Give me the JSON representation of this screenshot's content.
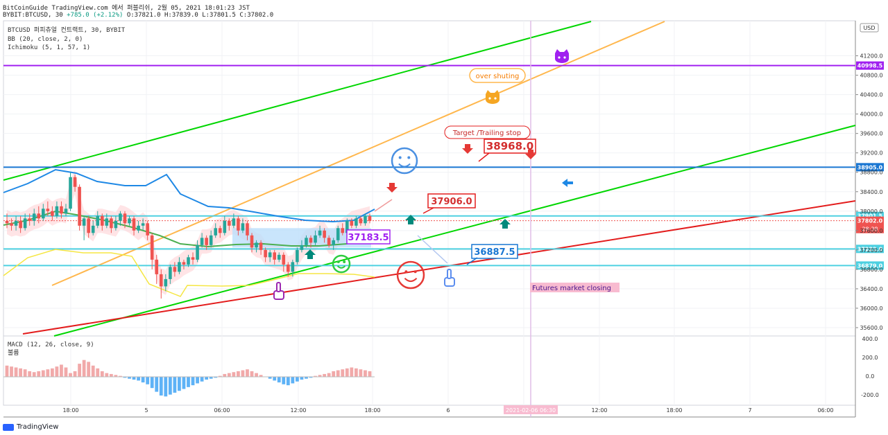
{
  "header": {
    "line1": "BitCoinGuide TradingView.com 에서 퍼블리쉬, 2월 05, 2021 18:01:23 JST",
    "symbol_line": "BYBIT:BTCUSD, 30",
    "ohlc_change": "+785.0 (+2.12%)",
    "ohlc_values": "O:37821.0 H:37839.0 L:37801.5 C:37802.0"
  },
  "legend": {
    "title": "BTCUSD 퍼피츄얼 컨트랙트, 30, BYBIT",
    "bb": "BB (20, close, 2, 0)",
    "ichimoku": "Ichimoku (5, 1, 57, 1)",
    "macd": "MACD (12, 26, close, 9)",
    "macd_sub": "불륨"
  },
  "colors": {
    "up": "#26a69a",
    "down": "#ef5350",
    "bb": "#1e88e5",
    "ema": "#4caf50",
    "lagging": "#f5e642",
    "cloud": "#ffcdd2",
    "cloud_blue": "#bbdefb",
    "green_line": "#00d600",
    "orange_line": "#ffb74d",
    "red_line": "#e31c1c",
    "purple": "#a020f0",
    "cyan": "#4dd0e1",
    "blue_level": "#1976d2"
  },
  "chart_data": {
    "type": "candlestick",
    "currency": "USD",
    "price_range": [
      35500,
      42300
    ],
    "price_ticks": [
      35600,
      36000,
      36400,
      36800,
      37200,
      37600,
      38000,
      38400,
      38800,
      39200,
      39600,
      40000,
      40400,
      40800,
      41200
    ],
    "time_labels": [
      "18:00",
      "5",
      "06:00",
      "12:00",
      "18:00",
      "6",
      "06:00",
      "12:00",
      "18:00",
      "7",
      "06:00"
    ],
    "current_price": "37802.0",
    "countdown": "28:38",
    "candles": [
      [
        37800,
        37750,
        37950,
        37650
      ],
      [
        37750,
        37700,
        37850,
        37600
      ],
      [
        37700,
        37800,
        37900,
        37600
      ],
      [
        37800,
        37650,
        37900,
        37550
      ],
      [
        37650,
        37850,
        37950,
        37600
      ],
      [
        37850,
        37800,
        37950,
        37700
      ],
      [
        37800,
        37950,
        38050,
        37700
      ],
      [
        37950,
        37850,
        38100,
        37750
      ],
      [
        37850,
        38050,
        38150,
        37800
      ],
      [
        38050,
        38000,
        38200,
        37900
      ],
      [
        38000,
        37900,
        38100,
        37800
      ],
      [
        37900,
        38100,
        38200,
        37850
      ],
      [
        38100,
        37950,
        38200,
        37850
      ],
      [
        37950,
        38050,
        38150,
        37900
      ],
      [
        38050,
        38700,
        38800,
        38000
      ],
      [
        38700,
        38500,
        38750,
        38400
      ],
      [
        38500,
        37700,
        38550,
        37600
      ],
      [
        37700,
        37850,
        37900,
        37400
      ],
      [
        37850,
        37550,
        37900,
        37450
      ],
      [
        37550,
        37700,
        37800,
        37500
      ],
      [
        37700,
        37900,
        38000,
        37650
      ],
      [
        37900,
        37700,
        37950,
        37600
      ],
      [
        37700,
        37850,
        37950,
        37650
      ],
      [
        37850,
        37650,
        37900,
        37550
      ],
      [
        37650,
        37800,
        37900,
        37600
      ],
      [
        37800,
        37950,
        38000,
        37700
      ],
      [
        37950,
        37750,
        38000,
        37650
      ],
      [
        37750,
        37850,
        37900,
        37700
      ],
      [
        37850,
        37600,
        37900,
        37500
      ],
      [
        37600,
        37700,
        37800,
        37550
      ],
      [
        37700,
        37750,
        37850,
        37600
      ],
      [
        37750,
        37500,
        37800,
        37400
      ],
      [
        37500,
        37000,
        37550,
        36800
      ],
      [
        37000,
        36700,
        37100,
        36500
      ],
      [
        36700,
        36450,
        36800,
        36200
      ],
      [
        36450,
        36600,
        36700,
        36350
      ],
      [
        36600,
        36850,
        36900,
        36500
      ],
      [
        36850,
        36750,
        36950,
        36650
      ],
      [
        36750,
        36950,
        37050,
        36700
      ],
      [
        36950,
        36900,
        37000,
        36800
      ],
      [
        36900,
        37050,
        37100,
        36850
      ],
      [
        37050,
        37000,
        37150,
        36900
      ],
      [
        37000,
        37300,
        37400,
        36950
      ],
      [
        37300,
        37450,
        37550,
        37250
      ],
      [
        37450,
        37300,
        37500,
        37200
      ],
      [
        37300,
        37500,
        37600,
        37250
      ],
      [
        37500,
        37650,
        37750,
        37450
      ],
      [
        37650,
        37550,
        37700,
        37450
      ],
      [
        37550,
        37800,
        37900,
        37500
      ],
      [
        37800,
        37700,
        37850,
        37600
      ],
      [
        37700,
        37850,
        37950,
        37650
      ],
      [
        37850,
        37600,
        37900,
        37500
      ],
      [
        37600,
        37750,
        37850,
        37550
      ],
      [
        37750,
        37500,
        37800,
        37400
      ],
      [
        37500,
        37250,
        37550,
        37150
      ],
      [
        37250,
        37350,
        37400,
        37150
      ],
      [
        37350,
        37200,
        37400,
        37100
      ],
      [
        37200,
        37050,
        37250,
        36950
      ],
      [
        37050,
        37150,
        37200,
        36950
      ],
      [
        37150,
        37000,
        37200,
        36900
      ],
      [
        37000,
        37100,
        37150,
        36950
      ],
      [
        37100,
        36900,
        37150,
        36750
      ],
      [
        36900,
        36750,
        36950,
        36650
      ],
      [
        36750,
        36950,
        37000,
        36650
      ],
      [
        36950,
        37200,
        37250,
        36900
      ],
      [
        37200,
        37300,
        37400,
        37150
      ],
      [
        37300,
        37450,
        37500,
        37250
      ],
      [
        37450,
        37350,
        37500,
        37250
      ],
      [
        37350,
        37500,
        37600,
        37300
      ],
      [
        37500,
        37600,
        37700,
        37450
      ],
      [
        37600,
        37450,
        37650,
        37350
      ],
      [
        37450,
        37300,
        37500,
        37250
      ],
      [
        37300,
        37400,
        37450,
        37200
      ],
      [
        37400,
        37650,
        37700,
        37350
      ],
      [
        37650,
        37550,
        37750,
        37500
      ],
      [
        37550,
        37800,
        37850,
        37500
      ],
      [
        37800,
        37700,
        37850,
        37650
      ],
      [
        37700,
        37850,
        37900,
        37650
      ],
      [
        37850,
        37750,
        37900,
        37700
      ],
      [
        37750,
        37900,
        37950,
        37700
      ],
      [
        37900,
        37800,
        37950,
        37750
      ]
    ],
    "horizontal_levels": [
      {
        "price": 40998.5,
        "label": "40998.5",
        "color": "#a020f0"
      },
      {
        "price": 38905.0,
        "label": "38905.0",
        "color": "#1976d2"
      },
      {
        "price": 37901.5,
        "label": "37901.5",
        "color": "#4dd0e1"
      },
      {
        "price": 37222.0,
        "label": "37222.0",
        "color": "#4dd0e1"
      },
      {
        "price": 36879.0,
        "label": "36879.0",
        "color": "#4dd0e1"
      }
    ],
    "annotations": {
      "target_label": "Target /Trailing stop",
      "price_38968": "38968.0",
      "price_37906": "37906.0",
      "price_37183": "37183.5",
      "price_36887": "36887.5",
      "over_shooting": "over shuting",
      "futures_closing": "Futures market closing",
      "vertical_tag": "2021-02-06 06:30"
    },
    "macd_ticks": [
      "400.0",
      "200.0",
      "0.0",
      "-200.0"
    ],
    "macd_hist": [
      120,
      110,
      100,
      90,
      80,
      60,
      50,
      60,
      70,
      80,
      90,
      110,
      130,
      100,
      40,
      60,
      140,
      180,
      160,
      120,
      90,
      60,
      40,
      30,
      20,
      10,
      -10,
      -20,
      -30,
      -40,
      -60,
      -80,
      -120,
      -160,
      -200,
      -210,
      -190,
      -170,
      -150,
      -130,
      -110,
      -90,
      -70,
      -50,
      -30,
      -20,
      -10,
      10,
      30,
      40,
      50,
      60,
      70,
      80,
      60,
      40,
      20,
      0,
      -20,
      -40,
      -60,
      -80,
      -90,
      -70,
      -50,
      -30,
      -20,
      -10,
      10,
      20,
      30,
      40,
      60,
      70,
      80,
      90,
      100,
      90,
      80,
      70,
      60
    ]
  }
}
